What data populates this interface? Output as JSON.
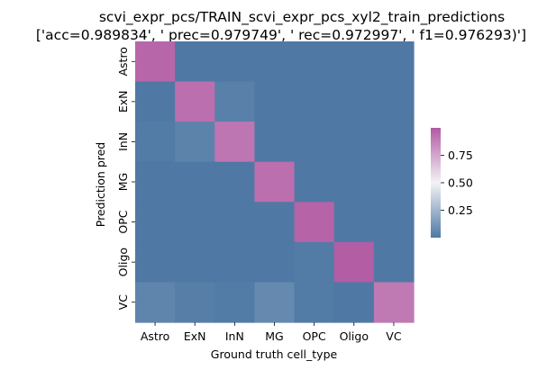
{
  "chart_data": {
    "type": "heatmap",
    "title": "scvi_expr_pcs/TRAIN_scvi_expr_pcs_xyl2_train_predictions",
    "subtitle": "['acc=0.989834', '  prec=0.979749', ' rec=0.972997', ' f1=0.976293)']",
    "xlabel": "Ground truth cell_type",
    "ylabel": "Prediction pred",
    "x_categories": [
      "Astro",
      "ExN",
      "InN",
      "MG",
      "OPC",
      "Oligo",
      "VC"
    ],
    "y_categories": [
      "Astro",
      "ExN",
      "InN",
      "MG",
      "OPC",
      "Oligo",
      "VC"
    ],
    "values": [
      [
        0.96,
        0.0,
        0.0,
        0.0,
        0.0,
        0.0,
        0.0
      ],
      [
        0.0,
        0.93,
        0.03,
        0.0,
        0.0,
        0.0,
        0.0
      ],
      [
        0.01,
        0.04,
        0.91,
        0.0,
        0.0,
        0.0,
        0.0
      ],
      [
        0.0,
        0.0,
        0.0,
        0.93,
        0.0,
        0.0,
        0.0
      ],
      [
        0.0,
        0.0,
        0.0,
        0.0,
        0.97,
        0.0,
        0.0
      ],
      [
        0.0,
        0.0,
        0.0,
        0.0,
        0.01,
        0.99,
        0.0
      ],
      [
        0.05,
        0.02,
        0.01,
        0.07,
        0.01,
        0.0,
        0.9
      ]
    ],
    "colormap": {
      "low": "#4f79a4",
      "mid": "#f3f3f5",
      "high": "#b25aa3"
    },
    "colorbar": {
      "range": [
        0.0,
        1.0
      ],
      "ticks": [
        "0.25",
        "0.50",
        "0.75"
      ],
      "tick_values": [
        0.25,
        0.5,
        0.75
      ]
    }
  }
}
